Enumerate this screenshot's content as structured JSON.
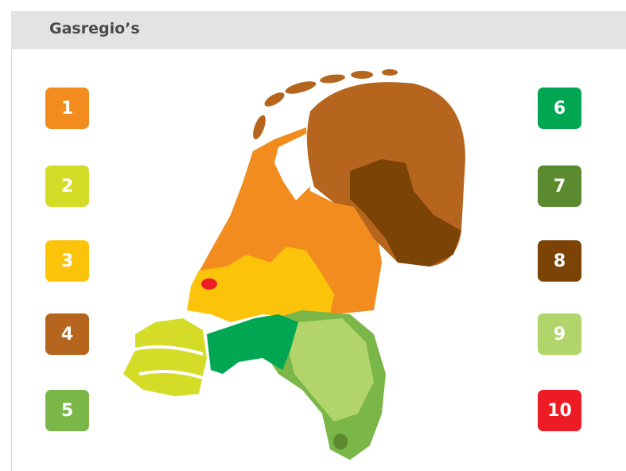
{
  "header": {
    "title": "Gasregio’s"
  },
  "legend": [
    {
      "label": "1",
      "color": "#f28c1e"
    },
    {
      "label": "2",
      "color": "#d4dc27"
    },
    {
      "label": "3",
      "color": "#fcc30b"
    },
    {
      "label": "4",
      "color": "#b5651d"
    },
    {
      "label": "5",
      "color": "#7ab648"
    },
    {
      "label": "6",
      "color": "#00a651"
    },
    {
      "label": "7",
      "color": "#5b8a2f"
    },
    {
      "label": "8",
      "color": "#7b4306"
    },
    {
      "label": "9",
      "color": "#b1d46b"
    },
    {
      "label": "10",
      "color": "#ed1c24"
    }
  ]
}
